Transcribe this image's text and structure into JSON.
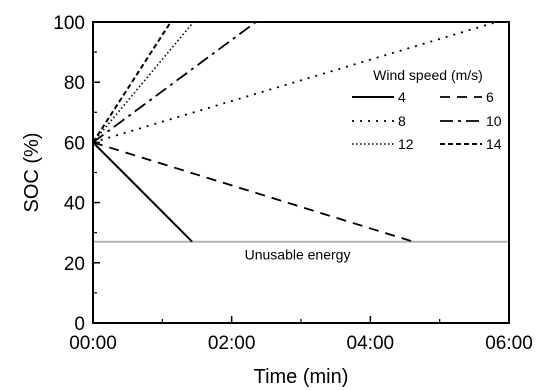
{
  "chart_data": {
    "type": "line",
    "xlabel": "Time (min)",
    "ylabel": "SOC (%)",
    "xlim": [
      0,
      6
    ],
    "ylim": [
      0,
      100
    ],
    "x_ticks": [
      0,
      2,
      4,
      6
    ],
    "x_tick_labels": [
      "00:00",
      "02:00",
      "04:00",
      "06:00"
    ],
    "y_ticks": [
      0,
      20,
      40,
      60,
      80,
      100
    ],
    "y_tick_labels": [
      "0",
      "20",
      "40",
      "60",
      "80",
      "100"
    ],
    "grid": false,
    "legend": {
      "title": "Wind speed (m/s)",
      "placement": "right",
      "columns": 2
    },
    "series": [
      {
        "name": "4",
        "style": "solid",
        "x": [
          0,
          1.43
        ],
        "y": [
          60,
          27
        ]
      },
      {
        "name": "6",
        "style": "long-dash",
        "x": [
          0,
          4.62
        ],
        "y": [
          60,
          27
        ]
      },
      {
        "name": "8",
        "style": "dot",
        "x": [
          0,
          5.82
        ],
        "y": [
          60,
          100
        ]
      },
      {
        "name": "10",
        "style": "dash-dot",
        "x": [
          0,
          2.35
        ],
        "y": [
          60,
          100
        ]
      },
      {
        "name": "12",
        "style": "dense-dot",
        "x": [
          0,
          1.45
        ],
        "y": [
          60,
          100
        ]
      },
      {
        "name": "14",
        "style": "short-dash",
        "x": [
          0,
          1.12
        ],
        "y": [
          60,
          100
        ]
      }
    ],
    "threshold": {
      "y": 27,
      "label": "Unusable energy",
      "color": "#b5b5b5"
    }
  }
}
